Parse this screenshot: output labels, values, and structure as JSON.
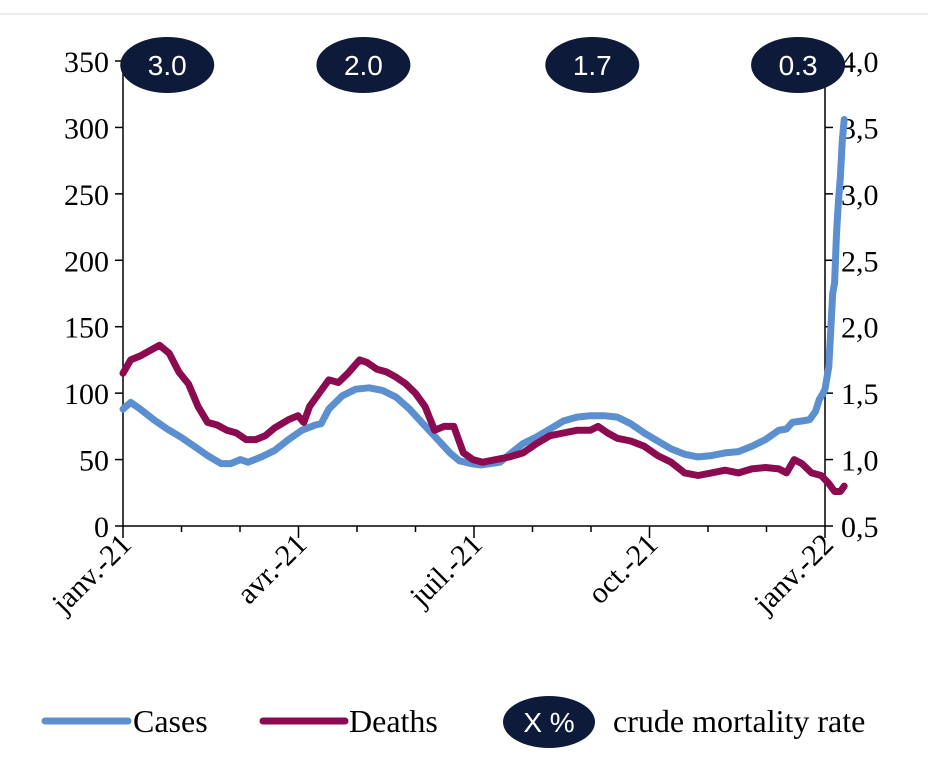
{
  "chart_data": {
    "type": "line",
    "x_ticks": [
      "janv.-21",
      "avr.-21",
      "juil.-21",
      "oct.-21",
      "janv.-22"
    ],
    "x_range": [
      "2021-01-01",
      "2022-01-01"
    ],
    "y_left": {
      "ticks": [
        "0",
        "50",
        "100",
        "150",
        "200",
        "250",
        "300",
        "350"
      ],
      "range": [
        0,
        350
      ]
    },
    "y_right": {
      "ticks": [
        "0,5",
        "1,0",
        "1,5",
        "2,0",
        "2,5",
        "3,0",
        "3,5",
        "4,0"
      ],
      "range": [
        0.5,
        4.0
      ]
    },
    "series": [
      {
        "name": "Cases",
        "axis": "left",
        "color": "#5b8fcf",
        "points": [
          [
            "2021-01-01",
            88
          ],
          [
            "2021-01-05",
            93
          ],
          [
            "2021-01-10",
            88
          ],
          [
            "2021-01-17",
            80
          ],
          [
            "2021-01-24",
            73
          ],
          [
            "2021-01-31",
            67
          ],
          [
            "2021-02-07",
            60
          ],
          [
            "2021-02-14",
            53
          ],
          [
            "2021-02-21",
            47
          ],
          [
            "2021-02-26",
            47
          ],
          [
            "2021-03-03",
            50
          ],
          [
            "2021-03-07",
            48
          ],
          [
            "2021-03-14",
            52
          ],
          [
            "2021-03-21",
            57
          ],
          [
            "2021-03-28",
            65
          ],
          [
            "2021-04-04",
            72
          ],
          [
            "2021-04-11",
            76
          ],
          [
            "2021-04-14",
            77
          ],
          [
            "2021-04-18",
            88
          ],
          [
            "2021-04-25",
            98
          ],
          [
            "2021-05-02",
            103
          ],
          [
            "2021-05-09",
            104
          ],
          [
            "2021-05-16",
            102
          ],
          [
            "2021-05-23",
            97
          ],
          [
            "2021-05-30",
            88
          ],
          [
            "2021-06-06",
            77
          ],
          [
            "2021-06-13",
            66
          ],
          [
            "2021-06-20",
            55
          ],
          [
            "2021-06-25",
            49
          ],
          [
            "2021-07-01",
            47
          ],
          [
            "2021-07-06",
            46
          ],
          [
            "2021-07-11",
            47
          ],
          [
            "2021-07-16",
            48
          ],
          [
            "2021-07-21",
            54
          ],
          [
            "2021-07-28",
            62
          ],
          [
            "2021-08-04",
            67
          ],
          [
            "2021-08-11",
            73
          ],
          [
            "2021-08-18",
            79
          ],
          [
            "2021-08-25",
            82
          ],
          [
            "2021-09-01",
            83
          ],
          [
            "2021-09-08",
            83
          ],
          [
            "2021-09-15",
            82
          ],
          [
            "2021-09-22",
            77
          ],
          [
            "2021-09-29",
            70
          ],
          [
            "2021-10-06",
            64
          ],
          [
            "2021-10-13",
            58
          ],
          [
            "2021-10-20",
            54
          ],
          [
            "2021-10-27",
            52
          ],
          [
            "2021-11-03",
            53
          ],
          [
            "2021-11-10",
            55
          ],
          [
            "2021-11-17",
            56
          ],
          [
            "2021-11-24",
            60
          ],
          [
            "2021-12-01",
            65
          ],
          [
            "2021-12-08",
            72
          ],
          [
            "2021-12-12",
            73
          ],
          [
            "2021-12-15",
            78
          ],
          [
            "2021-12-20",
            79
          ],
          [
            "2021-12-24",
            80
          ],
          [
            "2021-12-27",
            86
          ],
          [
            "2021-12-29",
            95
          ],
          [
            "2021-12-31",
            100
          ],
          [
            "2022-01-01",
            103
          ],
          [
            "2022-01-03",
            120
          ],
          [
            "2022-01-05",
            175
          ],
          [
            "2022-01-06",
            183
          ],
          [
            "2022-01-07",
            220
          ],
          [
            "2022-01-08",
            245
          ],
          [
            "2022-01-09",
            263
          ],
          [
            "2022-01-10",
            290
          ],
          [
            "2022-01-11",
            306
          ]
        ]
      },
      {
        "name": "Deaths",
        "axis": "right",
        "color": "#8b0a50",
        "points": [
          [
            "2021-01-01",
            1.65
          ],
          [
            "2021-01-05",
            1.75
          ],
          [
            "2021-01-10",
            1.78
          ],
          [
            "2021-01-15",
            1.82
          ],
          [
            "2021-01-20",
            1.86
          ],
          [
            "2021-01-25",
            1.8
          ],
          [
            "2021-01-30",
            1.66
          ],
          [
            "2021-02-04",
            1.57
          ],
          [
            "2021-02-09",
            1.4
          ],
          [
            "2021-02-14",
            1.28
          ],
          [
            "2021-02-19",
            1.26
          ],
          [
            "2021-02-24",
            1.22
          ],
          [
            "2021-03-01",
            1.2
          ],
          [
            "2021-03-06",
            1.15
          ],
          [
            "2021-03-11",
            1.15
          ],
          [
            "2021-03-16",
            1.18
          ],
          [
            "2021-03-21",
            1.24
          ],
          [
            "2021-03-28",
            1.3
          ],
          [
            "2021-04-02",
            1.33
          ],
          [
            "2021-04-05",
            1.28
          ],
          [
            "2021-04-08",
            1.4
          ],
          [
            "2021-04-14",
            1.52
          ],
          [
            "2021-04-18",
            1.6
          ],
          [
            "2021-04-23",
            1.58
          ],
          [
            "2021-04-28",
            1.65
          ],
          [
            "2021-05-04",
            1.75
          ],
          [
            "2021-05-08",
            1.73
          ],
          [
            "2021-05-13",
            1.68
          ],
          [
            "2021-05-18",
            1.66
          ],
          [
            "2021-05-23",
            1.62
          ],
          [
            "2021-05-28",
            1.57
          ],
          [
            "2021-06-02",
            1.5
          ],
          [
            "2021-06-07",
            1.4
          ],
          [
            "2021-06-12",
            1.22
          ],
          [
            "2021-06-17",
            1.25
          ],
          [
            "2021-06-22",
            1.25
          ],
          [
            "2021-06-27",
            1.05
          ],
          [
            "2021-07-02",
            1.0
          ],
          [
            "2021-07-07",
            0.98
          ],
          [
            "2021-07-14",
            1.0
          ],
          [
            "2021-07-21",
            1.02
          ],
          [
            "2021-07-28",
            1.05
          ],
          [
            "2021-08-04",
            1.12
          ],
          [
            "2021-08-11",
            1.18
          ],
          [
            "2021-08-18",
            1.2
          ],
          [
            "2021-08-25",
            1.22
          ],
          [
            "2021-09-01",
            1.22
          ],
          [
            "2021-09-05",
            1.25
          ],
          [
            "2021-09-10",
            1.2
          ],
          [
            "2021-09-15",
            1.16
          ],
          [
            "2021-09-22",
            1.14
          ],
          [
            "2021-09-29",
            1.1
          ],
          [
            "2021-10-06",
            1.03
          ],
          [
            "2021-10-13",
            0.98
          ],
          [
            "2021-10-20",
            0.9
          ],
          [
            "2021-10-27",
            0.88
          ],
          [
            "2021-11-03",
            0.9
          ],
          [
            "2021-11-10",
            0.92
          ],
          [
            "2021-11-17",
            0.9
          ],
          [
            "2021-11-24",
            0.93
          ],
          [
            "2021-12-01",
            0.94
          ],
          [
            "2021-12-08",
            0.93
          ],
          [
            "2021-12-12",
            0.9
          ],
          [
            "2021-12-16",
            1.0
          ],
          [
            "2021-12-20",
            0.97
          ],
          [
            "2021-12-25",
            0.9
          ],
          [
            "2021-12-30",
            0.88
          ],
          [
            "2022-01-03",
            0.82
          ],
          [
            "2022-01-06",
            0.76
          ],
          [
            "2022-01-09",
            0.76
          ],
          [
            "2022-01-11",
            0.8
          ]
        ]
      }
    ],
    "mortality_rate_labels": [
      {
        "date": "2021-01-24",
        "text": "3.0"
      },
      {
        "date": "2021-05-06",
        "text": "2.0"
      },
      {
        "date": "2021-09-02",
        "text": "1.7"
      },
      {
        "date": "2021-12-18",
        "text": "0.3"
      }
    ],
    "legend": {
      "items": [
        {
          "label": "Cases",
          "color": "#5b8fcf"
        },
        {
          "label": "Deaths",
          "color": "#8b0a50"
        }
      ],
      "bubble_text": "X %",
      "bubble_label": "crude mortality rate"
    },
    "colors": {
      "bubble": "#0d1a3a",
      "axis": "#000000"
    },
    "grid": false,
    "legend_position": "bottom"
  }
}
